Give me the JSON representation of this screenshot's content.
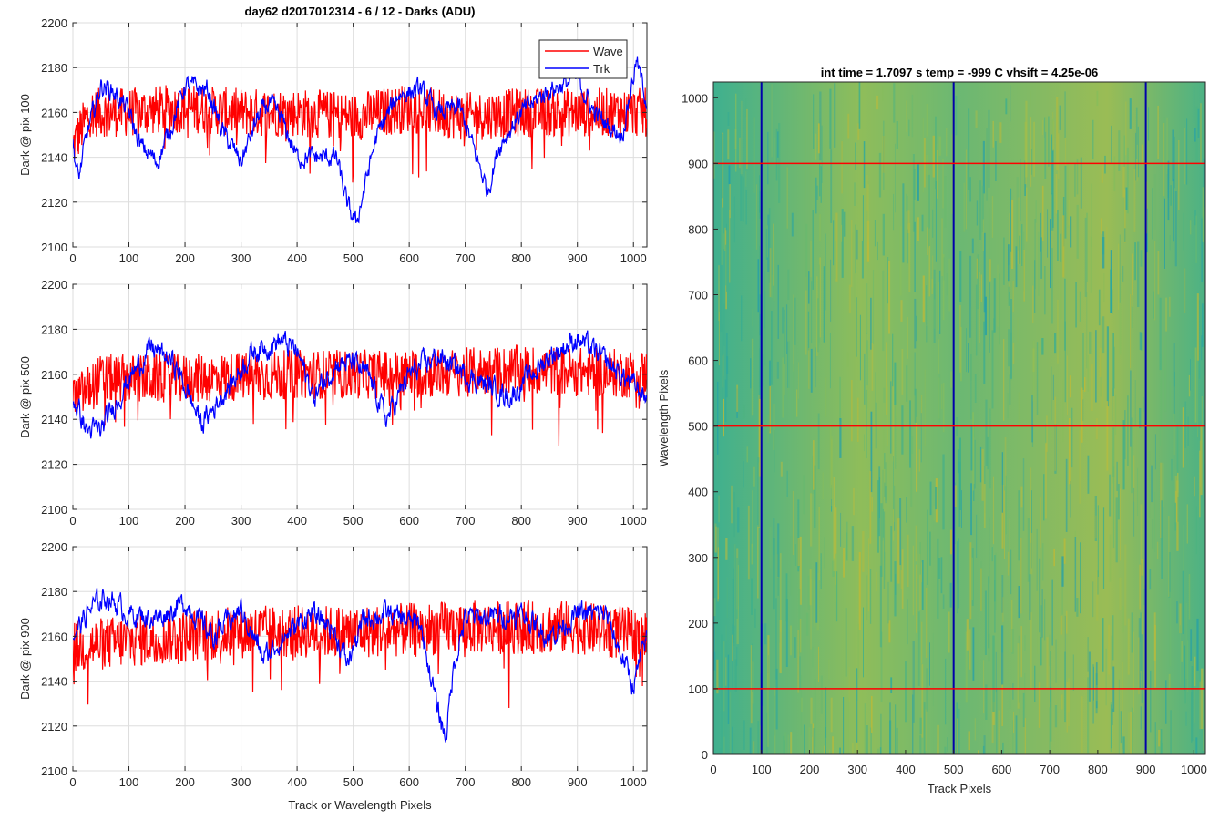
{
  "figure_title": "day62 d2017012314 - 6 / 12 - Darks (ADU)",
  "chart_data": [
    {
      "type": "line",
      "title": "day62 d2017012314 - 6 / 12 - Darks (ADU)",
      "xlabel": "",
      "ylabel": "Dark @ pix 100",
      "xlim": [
        0,
        1024
      ],
      "ylim": [
        2100,
        2200
      ],
      "xticks": [
        0,
        100,
        200,
        300,
        400,
        500,
        600,
        700,
        800,
        900,
        1000
      ],
      "yticks": [
        2100,
        2120,
        2140,
        2160,
        2180,
        2200
      ],
      "grid": true,
      "legend": {
        "position": "top-right",
        "entries": [
          "Wave",
          "Trk"
        ]
      },
      "series": [
        {
          "name": "Wave",
          "color": "#ff0000",
          "mean": 2160,
          "noise": 11,
          "anchors": [
            [
              0,
              2145
            ],
            [
              30,
              2160
            ],
            [
              100,
              2160
            ],
            [
              200,
              2162
            ],
            [
              300,
              2160
            ],
            [
              400,
              2160
            ],
            [
              500,
              2158
            ],
            [
              600,
              2162
            ],
            [
              700,
              2158
            ],
            [
              800,
              2160
            ],
            [
              900,
              2160
            ],
            [
              1024,
              2160
            ]
          ]
        },
        {
          "name": "Trk",
          "color": "#0000ff",
          "mean": 2160,
          "noise": 3.5,
          "anchors": [
            [
              0,
              2145
            ],
            [
              10,
              2130
            ],
            [
              25,
              2150
            ],
            [
              50,
              2172
            ],
            [
              70,
              2170
            ],
            [
              100,
              2160
            ],
            [
              120,
              2145
            ],
            [
              150,
              2138
            ],
            [
              170,
              2150
            ],
            [
              200,
              2172
            ],
            [
              240,
              2170
            ],
            [
              270,
              2150
            ],
            [
              300,
              2138
            ],
            [
              330,
              2158
            ],
            [
              350,
              2164
            ],
            [
              370,
              2158
            ],
            [
              400,
              2140
            ],
            [
              470,
              2140
            ],
            [
              490,
              2118
            ],
            [
              505,
              2110
            ],
            [
              540,
              2148
            ],
            [
              580,
              2168
            ],
            [
              620,
              2170
            ],
            [
              650,
              2160
            ],
            [
              690,
              2162
            ],
            [
              720,
              2140
            ],
            [
              740,
              2125
            ],
            [
              760,
              2145
            ],
            [
              800,
              2160
            ],
            [
              850,
              2170
            ],
            [
              900,
              2175
            ],
            [
              930,
              2160
            ],
            [
              950,
              2155
            ],
            [
              980,
              2150
            ],
            [
              1005,
              2183
            ],
            [
              1024,
              2165
            ]
          ]
        }
      ]
    },
    {
      "type": "line",
      "title": "",
      "xlabel": "",
      "ylabel": "Dark @ pix 500",
      "xlim": [
        0,
        1024
      ],
      "ylim": [
        2100,
        2200
      ],
      "xticks": [
        0,
        100,
        200,
        300,
        400,
        500,
        600,
        700,
        800,
        900,
        1000
      ],
      "yticks": [
        2100,
        2120,
        2140,
        2160,
        2180,
        2200
      ],
      "grid": true,
      "series": [
        {
          "name": "Wave",
          "color": "#ff0000",
          "mean": 2160,
          "noise": 11,
          "anchors": [
            [
              0,
              2148
            ],
            [
              50,
              2158
            ],
            [
              200,
              2158
            ],
            [
              400,
              2160
            ],
            [
              600,
              2160
            ],
            [
              800,
              2162
            ],
            [
              1024,
              2160
            ]
          ]
        },
        {
          "name": "Trk",
          "color": "#0000ff",
          "mean": 2160,
          "noise": 4,
          "anchors": [
            [
              0,
              2150
            ],
            [
              25,
              2135
            ],
            [
              50,
              2135
            ],
            [
              100,
              2158
            ],
            [
              140,
              2172
            ],
            [
              180,
              2165
            ],
            [
              230,
              2138
            ],
            [
              280,
              2155
            ],
            [
              320,
              2170
            ],
            [
              370,
              2175
            ],
            [
              400,
              2170
            ],
            [
              430,
              2150
            ],
            [
              470,
              2165
            ],
            [
              500,
              2165
            ],
            [
              530,
              2158
            ],
            [
              560,
              2140
            ],
            [
              600,
              2160
            ],
            [
              650,
              2168
            ],
            [
              700,
              2160
            ],
            [
              780,
              2150
            ],
            [
              850,
              2168
            ],
            [
              900,
              2176
            ],
            [
              940,
              2168
            ],
            [
              1000,
              2155
            ],
            [
              1024,
              2150
            ]
          ]
        }
      ]
    },
    {
      "type": "line",
      "title": "",
      "xlabel": "Track or Wavelength Pixels",
      "ylabel": "Dark @ pix 900",
      "xlim": [
        0,
        1024
      ],
      "ylim": [
        2100,
        2200
      ],
      "xticks": [
        0,
        100,
        200,
        300,
        400,
        500,
        600,
        700,
        800,
        900,
        1000
      ],
      "yticks": [
        2100,
        2120,
        2140,
        2160,
        2180,
        2200
      ],
      "grid": true,
      "series": [
        {
          "name": "Wave",
          "color": "#ff0000",
          "mean": 2160,
          "noise": 12,
          "anchors": [
            [
              0,
              2155
            ],
            [
              100,
              2158
            ],
            [
              300,
              2162
            ],
            [
              500,
              2162
            ],
            [
              700,
              2164
            ],
            [
              900,
              2164
            ],
            [
              1024,
              2160
            ]
          ]
        },
        {
          "name": "Trk",
          "color": "#0000ff",
          "mean": 2170,
          "noise": 4,
          "anchors": [
            [
              0,
              2160
            ],
            [
              30,
              2172
            ],
            [
              60,
              2178
            ],
            [
              100,
              2170
            ],
            [
              150,
              2168
            ],
            [
              200,
              2175
            ],
            [
              250,
              2160
            ],
            [
              300,
              2172
            ],
            [
              340,
              2150
            ],
            [
              370,
              2158
            ],
            [
              420,
              2170
            ],
            [
              460,
              2165
            ],
            [
              490,
              2148
            ],
            [
              520,
              2168
            ],
            [
              560,
              2170
            ],
            [
              620,
              2165
            ],
            [
              650,
              2128
            ],
            [
              665,
              2115
            ],
            [
              680,
              2148
            ],
            [
              700,
              2168
            ],
            [
              800,
              2170
            ],
            [
              850,
              2160
            ],
            [
              900,
              2170
            ],
            [
              950,
              2170
            ],
            [
              1000,
              2138
            ],
            [
              1024,
              2160
            ]
          ]
        }
      ]
    },
    {
      "type": "heatmap",
      "title": "int time = 1.7097 s    temp = -999 C    vhsift = 4.25e-06",
      "xlabel": "Track Pixels",
      "ylabel": "Wavelength Pixels",
      "xlim": [
        0,
        1024
      ],
      "ylim": [
        0,
        1024
      ],
      "xticks": [
        0,
        100,
        200,
        300,
        400,
        500,
        600,
        700,
        800,
        900,
        1000
      ],
      "yticks": [
        0,
        100,
        200,
        300,
        400,
        500,
        600,
        700,
        800,
        900,
        1000
      ],
      "colormap": "parula",
      "vertical_markers": {
        "color": "#0000aa",
        "values": [
          100,
          500,
          900
        ]
      },
      "horizontal_markers": {
        "color": "#ff0000",
        "values": [
          100,
          500,
          900
        ]
      }
    }
  ]
}
